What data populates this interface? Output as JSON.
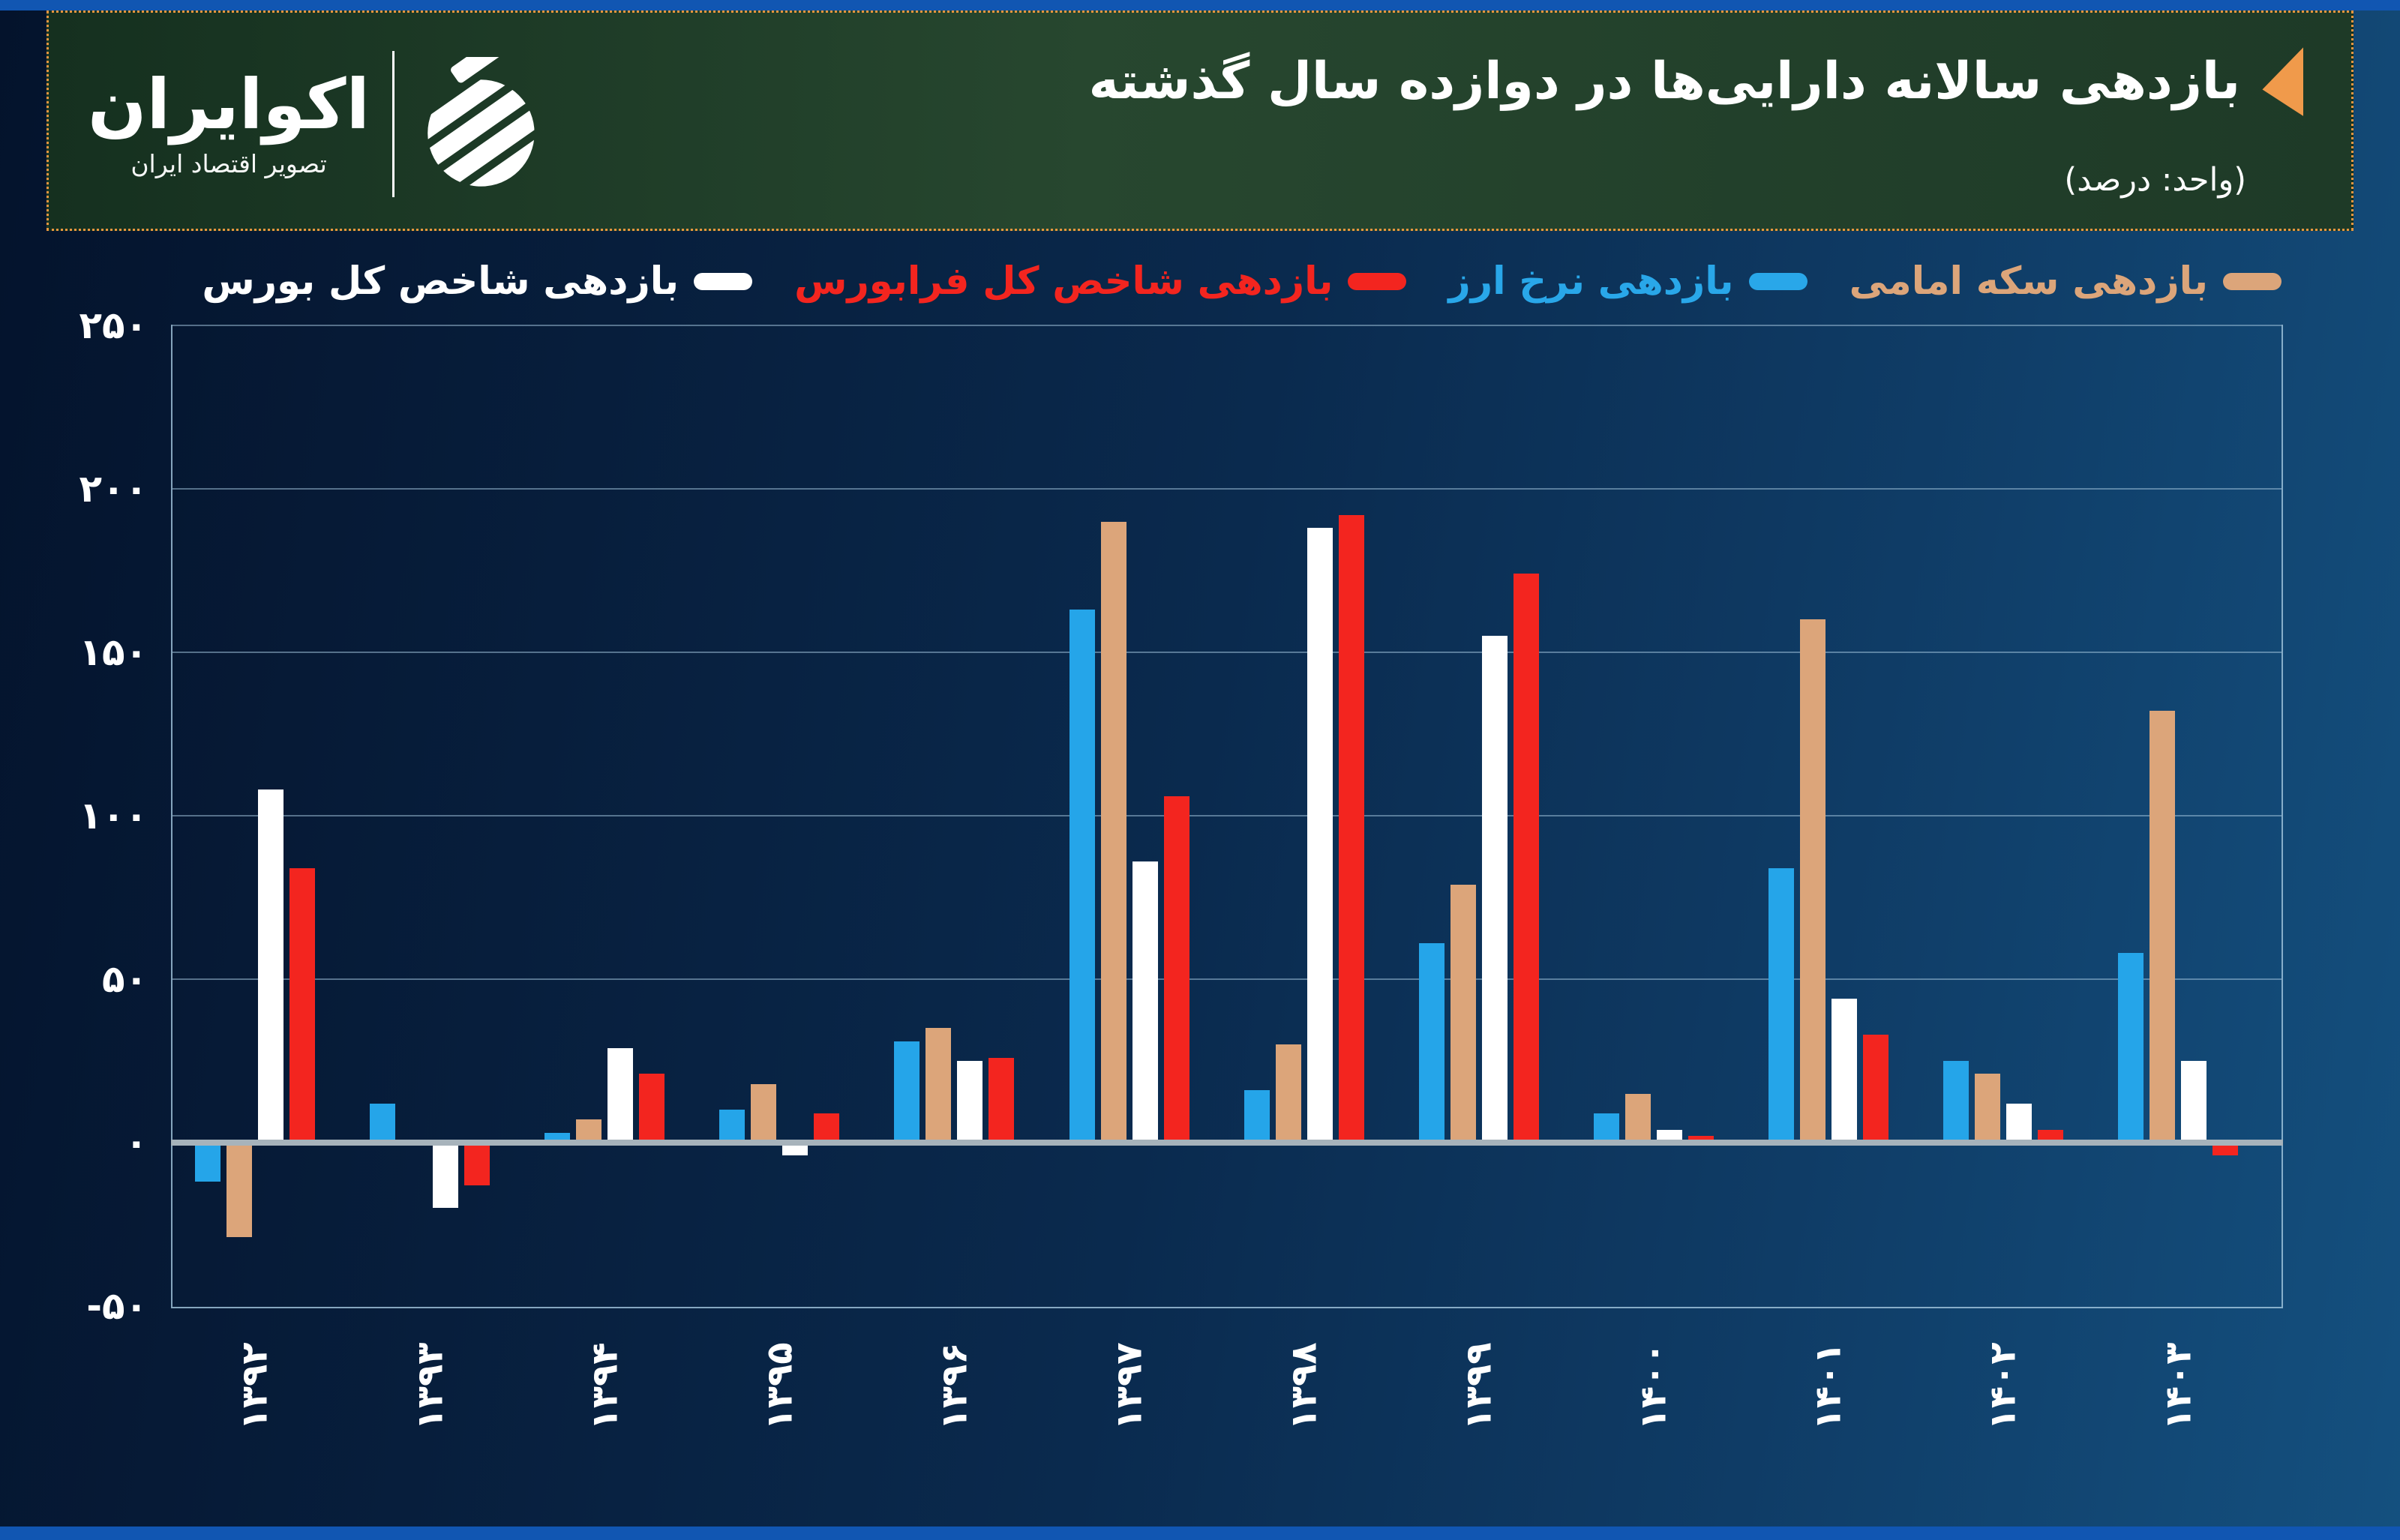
{
  "header": {
    "title": "بازدهی سالانه دارایی‌ها در دوازده سال گذشته",
    "unit": "(واحد: درصد)",
    "accent_color": "#f09a4b",
    "logo": {
      "name": "اکوایران",
      "tagline": "تصویر اقتصاد ایران"
    }
  },
  "legend": {
    "items": [
      {
        "label": "بازدهی سکه امامی",
        "color": "#dca57a"
      },
      {
        "label": "بازدهی نرخ ارز",
        "color": "#29a7e9"
      },
      {
        "label": "بازدهی شاخص کل فرابورس",
        "color": "#f3251f"
      },
      {
        "label": "بازدهی شاخص کل بورس",
        "color": "#ffffff"
      }
    ]
  },
  "chart_data": {
    "type": "bar",
    "title": "بازدهی سالانه دارایی‌ها در دوازده سال گذشته",
    "unit_label": "(واحد: درصد)",
    "categories": [
      "۱۳۹۲",
      "۱۳۹۳",
      "۱۳۹۴",
      "۱۳۹۵",
      "۱۳۹۶",
      "۱۳۹۷",
      "۱۳۹۸",
      "۱۳۹۹",
      "۱۴۰۰",
      "۱۴۰۱",
      "۱۴۰۲",
      "۱۴۰۳"
    ],
    "series": [
      {
        "name": "بازدهی نرخ ارز",
        "color": "#25a5e9",
        "values": [
          -12,
          12,
          3,
          10,
          31,
          163,
          16,
          61,
          9,
          84,
          25,
          58
        ]
      },
      {
        "name": "بازدهی سکه امامی",
        "color": "#dca57a",
        "values": [
          -29,
          1,
          7,
          18,
          35,
          190,
          30,
          79,
          15,
          160,
          21,
          132
        ]
      },
      {
        "name": "بازدهی شاخص کل بورس",
        "color": "#ffffff",
        "values": [
          108,
          -20,
          29,
          -4,
          25,
          86,
          188,
          155,
          4,
          44,
          12,
          25
        ]
      },
      {
        "name": "بازدهی شاخص کل فرابورس",
        "color": "#f3251f",
        "values": [
          84,
          -13,
          21,
          9,
          26,
          106,
          192,
          174,
          2,
          33,
          4,
          -4
        ]
      }
    ],
    "ylim": [
      -50,
      250
    ],
    "yticks": [
      {
        "value": 250,
        "label": "۲۵۰"
      },
      {
        "value": 200,
        "label": "۲۰۰"
      },
      {
        "value": 150,
        "label": "۱۵۰"
      },
      {
        "value": 100,
        "label": "۱۰۰"
      },
      {
        "value": 50,
        "label": "۵۰"
      },
      {
        "value": 0,
        "label": "۰"
      },
      {
        "value": -50,
        "label": "-۵۰"
      }
    ],
    "grid": "horizontal",
    "legend_position": "top"
  }
}
